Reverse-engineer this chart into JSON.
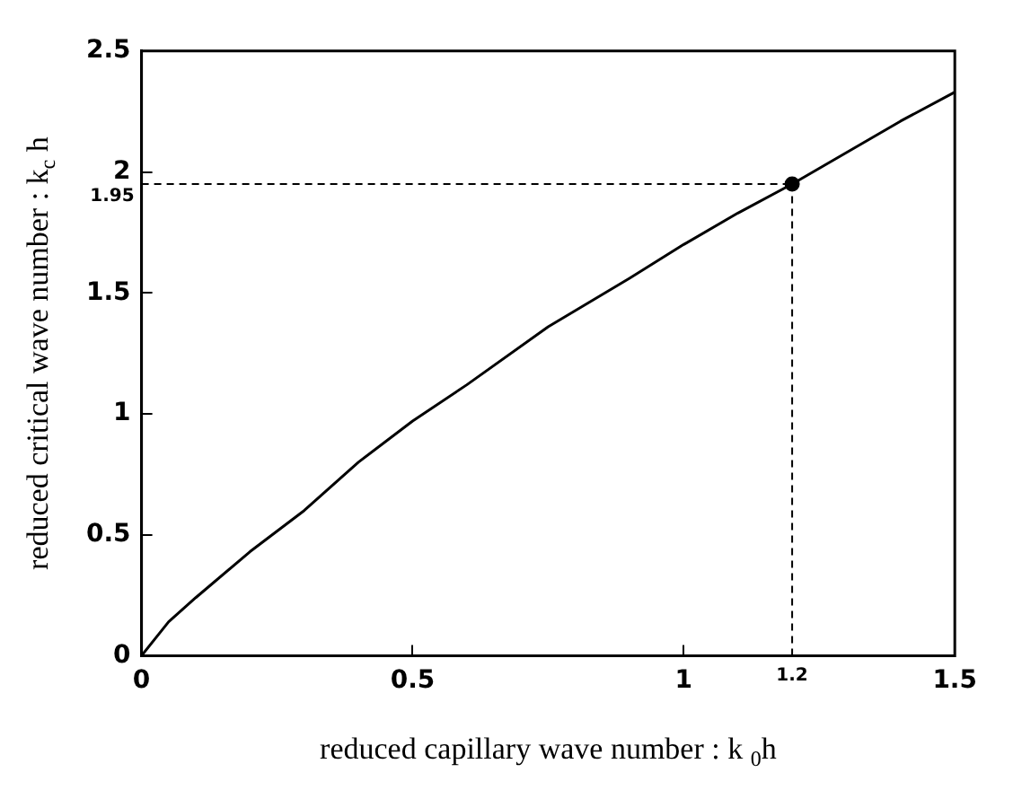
{
  "chart_data": {
    "type": "line",
    "xlabel": "reduced capillary wave number : k $_{0}$h",
    "ylabel": "reduced critical wave number : k$_{c}$ h",
    "x": [
      0,
      0.05,
      0.1,
      0.2,
      0.3,
      0.4,
      0.5,
      0.6,
      0.75,
      0.9,
      1.0,
      1.1,
      1.2,
      1.3,
      1.4,
      1.5
    ],
    "series": [
      {
        "color": "#000000",
        "marker": "none",
        "values": [
          0,
          0.14,
          0.24,
          0.43,
          0.6,
          0.8,
          0.97,
          1.12,
          1.36,
          1.56,
          1.7,
          1.83,
          1.95,
          2.08,
          2.21,
          2.33
        ]
      },
      {
        "type": "scatter",
        "color": "#000000",
        "marker": "circle",
        "x": [
          1.2
        ],
        "values": [
          1.95
        ]
      }
    ],
    "xlim": [
      0,
      1.5
    ],
    "xticks": [
      0,
      0.5,
      1,
      1.5
    ],
    "ylim": [
      0,
      2.5
    ],
    "yticks": [
      0,
      0.5,
      1,
      1.5,
      2,
      2.5
    ],
    "ref_lines": [
      {
        "axis": "x",
        "value": 1.2,
        "label": "1.2",
        "line_style": "dashed"
      },
      {
        "axis": "y",
        "value": 1.95,
        "label": "1.95",
        "line_style": "dashed"
      }
    ],
    "grid": false,
    "legend": false
  }
}
